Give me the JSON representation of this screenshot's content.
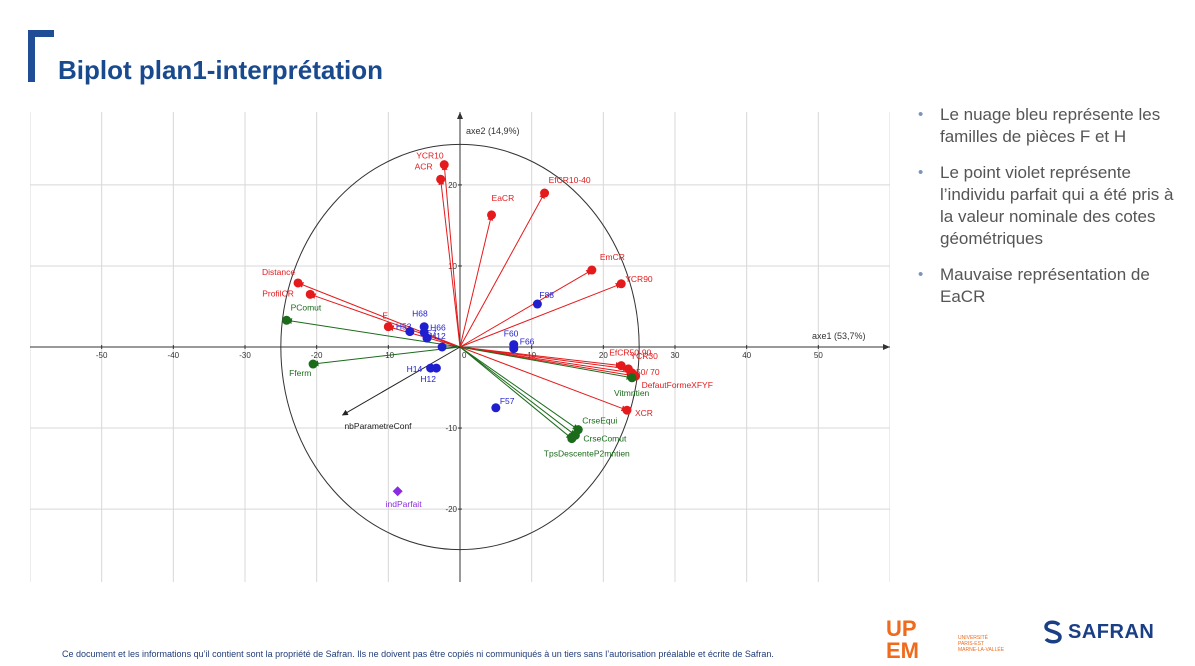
{
  "title": "Biplot plan1-interprétation",
  "bullets": [
    "Le nuage bleu représente les familles de pièces F et H",
    "Le point violet représente l’individu parfait  qui a été pris à la valeur nominale des cotes géométriques",
    "Mauvaise  représentation de EaCR"
  ],
  "footer": "Ce document et les informations qu’il contient sont la propriété de Safran. Ils ne doivent pas être copiés ni communiqués à un tiers sans l’autorisation préalable et écrite de Safran.",
  "logos": {
    "upem_top": "UP",
    "upem_bottom": "EM",
    "upem_lines": [
      "UNIVERSITÉ",
      "PARIS-EST",
      "MARNE-LA-VALLÉE"
    ],
    "safran": "SAFRAN"
  },
  "colors": {
    "title": "#1a4a8e",
    "red": "#e41a1c",
    "blue": "#1f1fcf",
    "green": "#1b6b1b",
    "purple": "#8a2be2",
    "black": "#222222",
    "grid": "#d8d8d8"
  },
  "chart_data": {
    "type": "scatter",
    "xlabel": "axe1 (53,7%)",
    "ylabel": "axe2 (14,9%)",
    "xlim": [
      -60,
      60
    ],
    "ylim": [
      -29,
      29
    ],
    "xticks": [
      -50,
      -40,
      -30,
      -20,
      -10,
      0,
      10,
      20,
      30,
      40,
      50
    ],
    "yticks": [
      -20,
      -10,
      10,
      20
    ],
    "grid": true,
    "circle_radius": 25,
    "vectors": [
      {
        "name": "YCR10",
        "x": -2.2,
        "y": 22.5,
        "group": "red"
      },
      {
        "name": "ACR",
        "x": -2.7,
        "y": 20.7,
        "group": "red"
      },
      {
        "name": "EfCR10-40",
        "x": 11.8,
        "y": 19.0,
        "group": "red"
      },
      {
        "name": "EaCR",
        "x": 4.4,
        "y": 16.3,
        "group": "red"
      },
      {
        "name": "EmCR",
        "x": 18.4,
        "y": 9.5,
        "group": "red"
      },
      {
        "name": "YCR90",
        "x": 22.5,
        "y": 7.8,
        "group": "red"
      },
      {
        "name": "Distance",
        "x": -22.6,
        "y": 7.9,
        "group": "red"
      },
      {
        "name": "ProfilCR",
        "x": -20.9,
        "y": 6.5,
        "group": "red"
      },
      {
        "name": "E",
        "x": -10.0,
        "y": 2.5,
        "group": "red"
      },
      {
        "name": "EfCR50-90",
        "x": 22.5,
        "y": -2.3,
        "group": "red"
      },
      {
        "name": "YCR30",
        "x": 23.5,
        "y": -2.7,
        "group": "red"
      },
      {
        "name": "50/ 70",
        "x": 24.0,
        "y": -3.2,
        "group": "red"
      },
      {
        "name": "DefautFormeXFYF",
        "x": 24.5,
        "y": -3.6,
        "group": "red"
      },
      {
        "name": "XCR",
        "x": 23.3,
        "y": -7.8,
        "group": "red"
      },
      {
        "name": "PComut",
        "x": -24.2,
        "y": 3.3,
        "group": "green"
      },
      {
        "name": "Fferm",
        "x": -20.5,
        "y": -2.1,
        "group": "green"
      },
      {
        "name": "Vitmntien",
        "x": 24.0,
        "y": -3.8,
        "group": "green"
      },
      {
        "name": "CrseEqui",
        "x": 16.5,
        "y": -10.2,
        "group": "green"
      },
      {
        "name": "CrseComut",
        "x": 16.1,
        "y": -10.9,
        "group": "green"
      },
      {
        "name": "TpsDescenteP2mntien",
        "x": 15.6,
        "y": -11.3,
        "group": "green"
      },
      {
        "name": "nbParametreConf",
        "x": -16.4,
        "y": -8.4,
        "group": "black"
      }
    ],
    "individuals": [
      {
        "name": "F88",
        "x": 10.8,
        "y": 5.3,
        "group": "blue"
      },
      {
        "name": "F60",
        "x": 7.5,
        "y": 0.3,
        "group": "blue"
      },
      {
        "name": "F66",
        "x": 7.5,
        "y": -0.2,
        "group": "blue"
      },
      {
        "name": "F57",
        "x": 5.0,
        "y": -7.5,
        "group": "blue"
      },
      {
        "name": "H68",
        "x": -5.0,
        "y": 2.5,
        "group": "blue"
      },
      {
        "name": "H66",
        "x": -5.0,
        "y": 1.8,
        "group": "blue"
      },
      {
        "name": "H57",
        "x": -4.6,
        "y": 1.1,
        "group": "blue"
      },
      {
        "name": "H53",
        "x": -7.0,
        "y": 1.9,
        "group": "blue"
      },
      {
        "name": "H12",
        "x": -2.5,
        "y": 0.0,
        "group": "blue"
      },
      {
        "name": "H14",
        "x": -4.1,
        "y": -2.6,
        "group": "blue"
      },
      {
        "name": "H12",
        "x": -3.3,
        "y": -2.6,
        "group": "blue"
      },
      {
        "name": "indParfait",
        "x": -8.7,
        "y": -17.8,
        "group": "purple"
      }
    ]
  }
}
